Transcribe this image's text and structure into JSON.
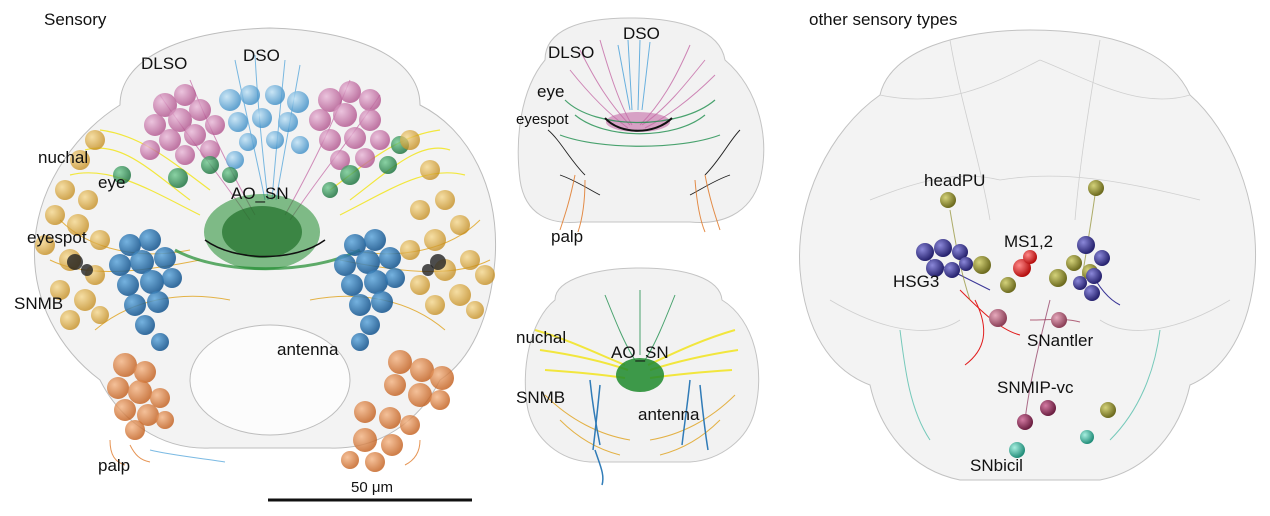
{
  "panels": {
    "left": {
      "title": "Sensory",
      "labels": {
        "dlso": "DLSO",
        "dso": "DSO",
        "nuchal": "nuchal",
        "eye": "eye",
        "ao_sn": "AO_SN",
        "eyespot": "eyespot",
        "snmb": "SNMB",
        "antenna": "antenna",
        "palp": "palp"
      },
      "scale_bar": "50 μm"
    },
    "top_middle": {
      "labels": {
        "dso": "DSO",
        "dlso": "DLSO",
        "eye": "eye",
        "eyespot": "eyespot",
        "palp": "palp"
      }
    },
    "bottom_middle": {
      "labels": {
        "nuchal": "nuchal",
        "ao_sn": "AO_SN",
        "snmb": "SNMB",
        "antenna": "antenna"
      }
    },
    "right": {
      "title": "other sensory types",
      "labels": {
        "headpu": "headPU",
        "ms12": "MS1,2",
        "hsg3": "HSG3",
        "snantler": "SNantler",
        "snmipvc": "SNMIP-vc",
        "snbicil": "SNbicil"
      }
    }
  },
  "colors": {
    "dlso": "#c56aa6",
    "dso": "#5aa9dc",
    "eye": "#1f8f4e",
    "eyespot": "#222222",
    "nuchal": "#f2e51e",
    "ao_sn": "#1d8a2c",
    "snmb": "#1c6fb1",
    "antenna": "#e0a21c",
    "palp": "#e07a2a",
    "headpu": "#8f8d2e",
    "hsg3": "#3a3596",
    "ms12": "#e11d1d",
    "snantler": "#b0627a",
    "snmipvc": "#8c2f58",
    "snbicil": "#3fb7a1"
  }
}
